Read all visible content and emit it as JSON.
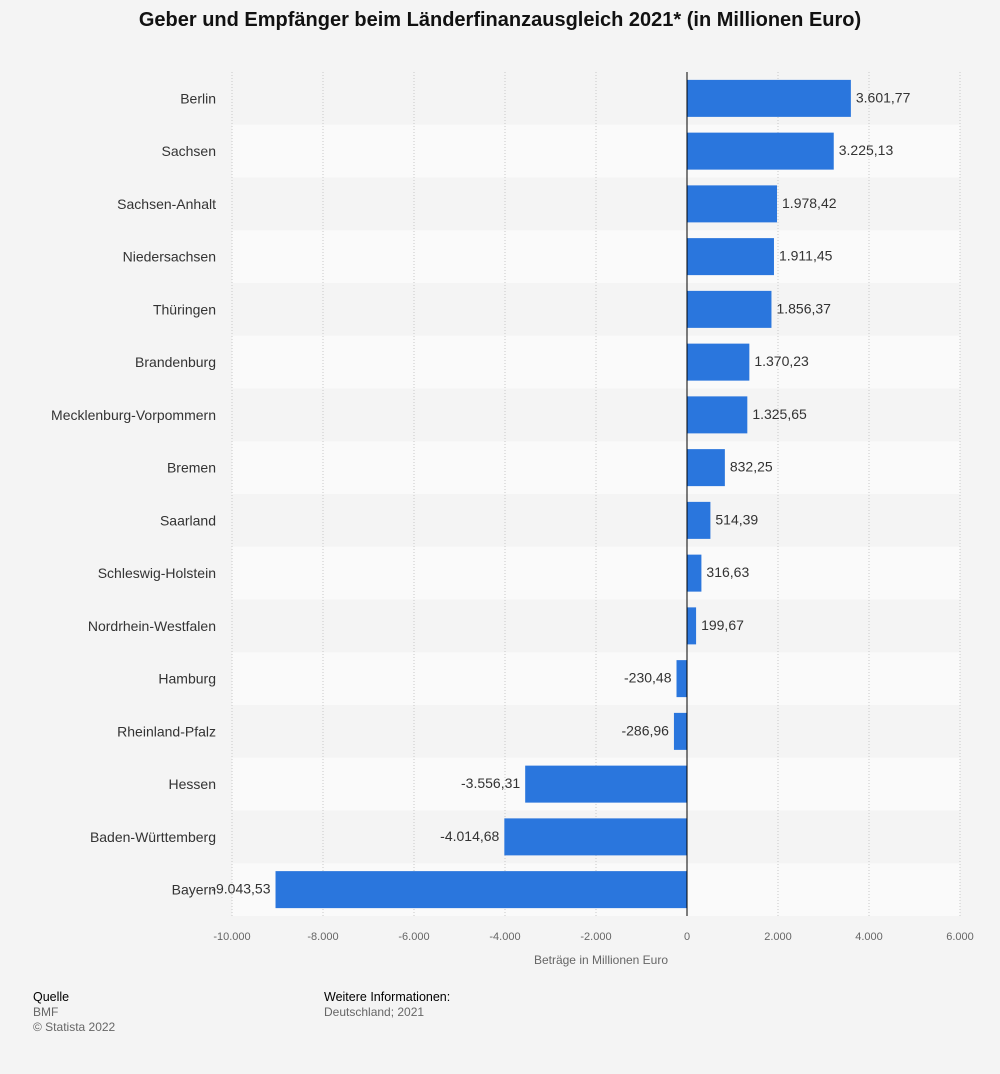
{
  "chart_data": {
    "type": "bar",
    "orientation": "horizontal",
    "title": "Geber und Empfänger beim Länderfinanzausgleich 2021* (in Millionen Euro)",
    "xlabel": "Beträge in Millionen Euro",
    "ylabel": "",
    "xlim": [
      -10000,
      6000
    ],
    "xticks": [
      -10000,
      -8000,
      -6000,
      -4000,
      -2000,
      0,
      2000,
      4000,
      6000
    ],
    "xtick_labels": [
      "-10.000",
      "-8.000",
      "-6.000",
      "-4.000",
      "-2.000",
      "0",
      "2.000",
      "4.000",
      "6.000"
    ],
    "categories": [
      "Berlin",
      "Sachsen",
      "Sachsen-Anhalt",
      "Niedersachsen",
      "Thüringen",
      "Brandenburg",
      "Mecklenburg-Vorpommern",
      "Bremen",
      "Saarland",
      "Schleswig-Holstein",
      "Nordrhein-Westfalen",
      "Hamburg",
      "Rheinland-Pfalz",
      "Hessen",
      "Baden-Württemberg",
      "Bayern"
    ],
    "values": [
      3601.77,
      3225.13,
      1978.42,
      1911.45,
      1856.37,
      1370.23,
      1325.65,
      832.25,
      514.39,
      316.63,
      199.67,
      -230.48,
      -286.96,
      -3556.31,
      -4014.68,
      -9043.53
    ],
    "value_labels": [
      "3.601,77",
      "3.225,13",
      "1.978,42",
      "1.911,45",
      "1.856,37",
      "1.370,23",
      "1.325,65",
      "832,25",
      "514,39",
      "316,63",
      "199,67",
      "-230,48",
      "-286,96",
      "-3.556,31",
      "-4.014,68",
      "-9.043,53"
    ],
    "bar_color": "#2a76dd",
    "grid": true
  },
  "footer": {
    "source_heading": "Quelle",
    "source_name": "BMF",
    "copyright": "© Statista 2022",
    "info_heading": "Weitere Informationen:",
    "info_text": "Deutschland; 2021"
  }
}
